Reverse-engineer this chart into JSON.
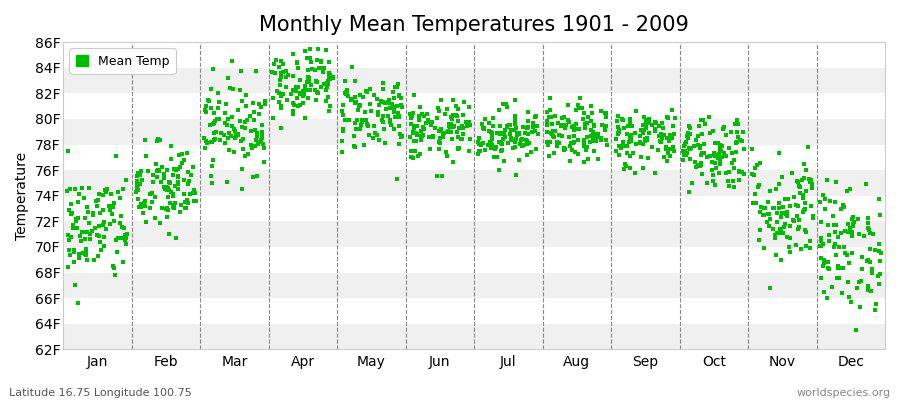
{
  "title": "Monthly Mean Temperatures 1901 - 2009",
  "ylabel": "Temperature",
  "ylim": [
    62,
    86
  ],
  "ytick_labels": [
    "62F",
    "64F",
    "66F",
    "68F",
    "70F",
    "72F",
    "74F",
    "76F",
    "78F",
    "80F",
    "82F",
    "84F",
    "86F"
  ],
  "ytick_values": [
    62,
    64,
    66,
    68,
    70,
    72,
    74,
    76,
    78,
    80,
    82,
    84,
    86
  ],
  "months": [
    "Jan",
    "Feb",
    "Mar",
    "Apr",
    "May",
    "Jun",
    "Jul",
    "Aug",
    "Sep",
    "Oct",
    "Nov",
    "Dec"
  ],
  "n_years": 109,
  "seed": 42,
  "marker_color": "#00bb00",
  "marker_size": 5,
  "background_color": "#ffffff",
  "plot_bg_color": "#ffffff",
  "band_color_light": "#f0f0f0",
  "band_color_dark": "#ffffff",
  "grid_color": "#888888",
  "title_fontsize": 15,
  "axis_fontsize": 10,
  "tick_fontsize": 10,
  "legend_label": "Mean Temp",
  "footnote_left": "Latitude 16.75 Longitude 100.75",
  "footnote_right": "worldspecies.org",
  "month_means": [
    71.5,
    74.5,
    79.5,
    83.0,
    80.5,
    79.0,
    78.8,
    78.8,
    78.5,
    77.5,
    73.0,
    70.0
  ],
  "month_stds": [
    2.2,
    1.8,
    1.8,
    1.4,
    1.5,
    1.2,
    1.1,
    1.1,
    1.2,
    1.5,
    2.2,
    2.5
  ]
}
